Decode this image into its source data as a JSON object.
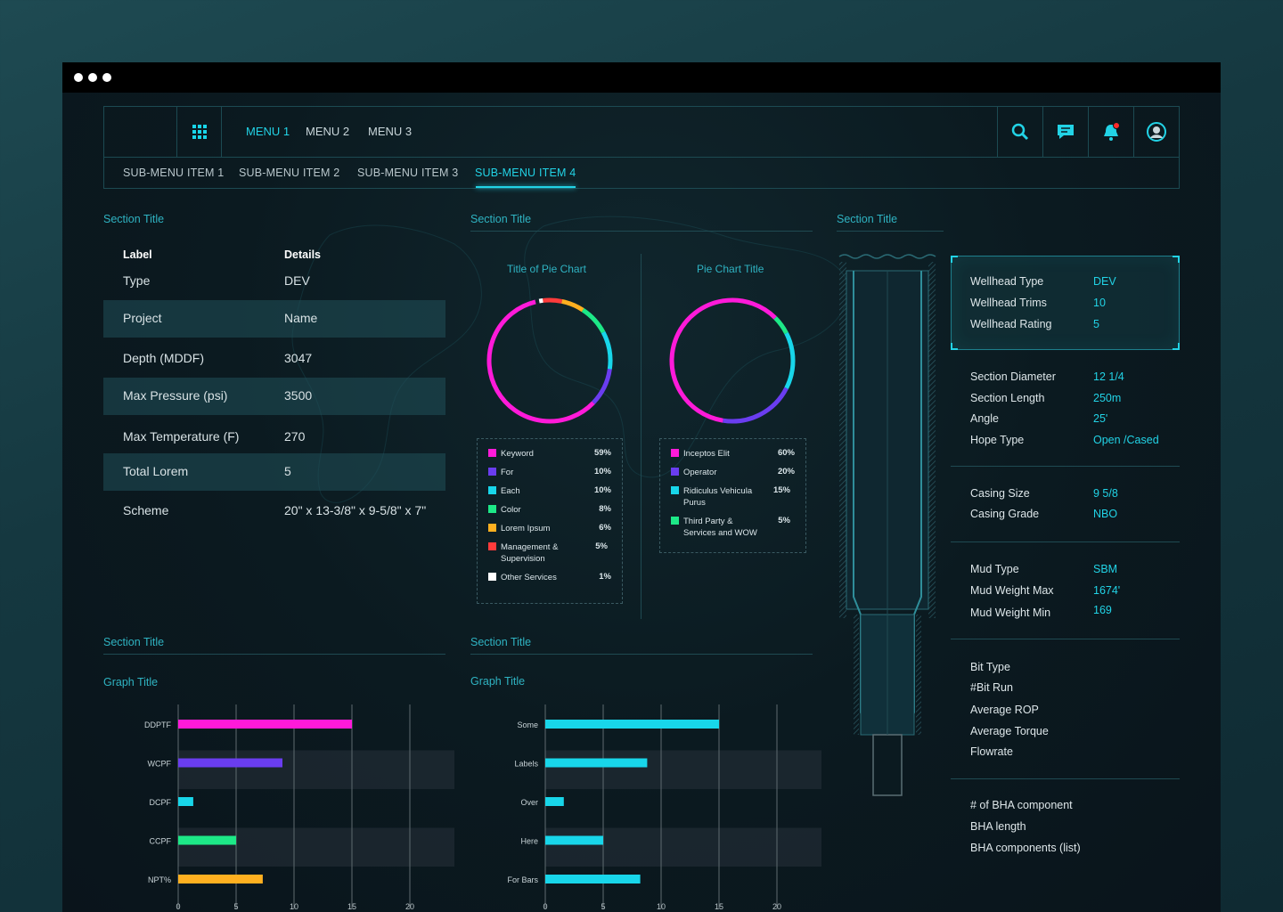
{
  "nav": {
    "menus": [
      "MENU 1",
      "MENU 2",
      "MENU 3"
    ],
    "submenus": [
      "SUB-MENU ITEM 1",
      "SUB-MENU ITEM 2",
      "SUB-MENU ITEM 3",
      "SUB-MENU ITEM 4"
    ],
    "icons": [
      "search-icon",
      "chat-icon",
      "bell-icon",
      "avatar"
    ],
    "accent": "#22d3e6"
  },
  "sections": {
    "details_title": "Section Title",
    "pies_title": "Section Title",
    "well_title": "Section Title",
    "graph1_section": "Section Title",
    "graph2_section": "Section Title"
  },
  "details": {
    "header": [
      "Label",
      "Details"
    ],
    "rows": [
      {
        "label": "Type",
        "value": "DEV"
      },
      {
        "label": "Project",
        "value": "Name"
      },
      {
        "label": "Depth (MDDF)",
        "value": "3047"
      },
      {
        "label": "Max Pressure (psi)",
        "value": "3500"
      },
      {
        "label": "Max Temperature (F)",
        "value": "270"
      },
      {
        "label": "Total Lorem",
        "value": "5"
      },
      {
        "label": "Scheme",
        "value": "20\" x 13-3/8\" x 9-5/8\" x 7\""
      }
    ]
  },
  "pie1": {
    "title": "Title of Pie Chart",
    "items": [
      {
        "label": "Keyword",
        "value": "59%",
        "pct": 59,
        "color": "#ff1ad9"
      },
      {
        "label": "For",
        "value": "10%",
        "pct": 10,
        "color": "#6a3df0"
      },
      {
        "label": "Each",
        "value": "10%",
        "pct": 10,
        "color": "#18d6ea"
      },
      {
        "label": "Color",
        "value": "8%",
        "pct": 8,
        "color": "#1de887"
      },
      {
        "label": "Lorem Ipsum",
        "value": "6%",
        "pct": 6,
        "color": "#ffb020"
      },
      {
        "label": "Management & Supervision",
        "value": "5%",
        "pct": 5,
        "color": "#ff3b3b"
      },
      {
        "label": "Other Services",
        "value": "1%",
        "pct": 1,
        "color": "#ffffff"
      }
    ]
  },
  "pie2": {
    "title": "Pie Chart Title",
    "items": [
      {
        "label": "Inceptos Elit",
        "value": "60%",
        "pct": 60,
        "color": "#ff1ad9"
      },
      {
        "label": "Operator",
        "value": "20%",
        "pct": 20,
        "color": "#6a3df0"
      },
      {
        "label": "Ridiculus Vehicula Purus",
        "value": "15%",
        "pct": 15,
        "color": "#18d6ea"
      },
      {
        "label": "Third Party & Services and WOW",
        "value": "5%",
        "pct": 5,
        "color": "#1de887"
      }
    ]
  },
  "well": {
    "box": [
      {
        "k": "Wellhead Type",
        "v": "DEV"
      },
      {
        "k": "Wellhead Trims",
        "v": "10"
      },
      {
        "k": "Wellhead Rating",
        "v": "5"
      }
    ],
    "group1": [
      {
        "k": "Section Diameter",
        "v": "12 1/4"
      },
      {
        "k": "Section Length",
        "v": "250m"
      },
      {
        "k": "Angle",
        "v": "25'"
      },
      {
        "k": "Hope Type",
        "v": "Open /Cased"
      }
    ],
    "group2": [
      {
        "k": "Casing Size",
        "v": "9 5/8"
      },
      {
        "k": "Casing  Grade",
        "v": "NBO"
      }
    ],
    "group3": [
      {
        "k": "Mud Type",
        "v": "SBM"
      },
      {
        "k": "Mud Weight Max",
        "v": "1674'"
      },
      {
        "k": "Mud Weight Min",
        "v": "169"
      }
    ],
    "group4": [
      "Bit Type",
      "#Bit Run",
      "Average ROP",
      "Average Torque",
      "Flowrate"
    ],
    "group5": [
      "# of BHA component",
      "BHA length",
      "BHA components (list)"
    ]
  },
  "chart_data": [
    {
      "type": "bar",
      "title": "Graph Title",
      "orientation": "horizontal",
      "categories": [
        "DDPTF",
        "WCPF",
        "DCPF",
        "CCPF",
        "NPT%"
      ],
      "values": [
        15,
        9,
        1.3,
        5,
        7.3
      ],
      "colors": [
        "#ff1ad9",
        "#6a3df0",
        "#18d6ea",
        "#1de887",
        "#ffb020"
      ],
      "xlim": [
        0,
        20
      ],
      "xticks": [
        "0",
        "5",
        "10",
        "15",
        "20"
      ],
      "grid": true
    },
    {
      "type": "bar",
      "title": "Graph Title",
      "orientation": "horizontal",
      "categories": [
        "Some",
        "Labels",
        "Over",
        "Here",
        "For Bars"
      ],
      "values": [
        15,
        8.8,
        1.6,
        5,
        8.2
      ],
      "colors": [
        "#18d6ea",
        "#18d6ea",
        "#18d6ea",
        "#18d6ea",
        "#18d6ea"
      ],
      "xlim": [
        0,
        20
      ],
      "xticks": [
        "0",
        "5",
        "10",
        "15",
        "20"
      ],
      "grid": true
    }
  ]
}
